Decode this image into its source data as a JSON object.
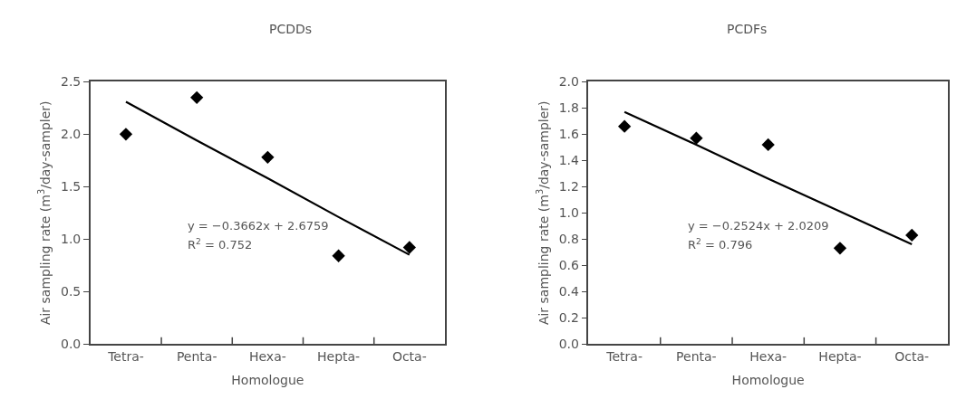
{
  "chart_data": [
    {
      "type": "scatter",
      "title": "PCDDs",
      "xlabel": "Homologue",
      "ylabel": "Air sampling rate (m$^{3}$/day-sampler)",
      "categories": [
        "Tetra-",
        "Penta-",
        "Hexa-",
        "Hepta-",
        "Octa-"
      ],
      "ylim": [
        0,
        2.5
      ],
      "yticks": [
        {
          "value": 0,
          "label": "0.0"
        },
        0.5,
        {
          "value": 1,
          "label": "1.0"
        },
        1.5,
        {
          "value": 2,
          "label": "2.0"
        },
        2.5
      ],
      "marker": "diamond",
      "series": [
        {
          "color": "#000000",
          "values": [
            2.0,
            2.35,
            1.78,
            0.84,
            0.92
          ]
        },
        {
          "type": "line",
          "color": "#000000",
          "line_style": "solid",
          "marker": "none",
          "values": [
            2.31,
            1.94,
            1.58,
            1.21,
            0.85
          ]
        }
      ],
      "annotations": [
        "y = −0.3662x + 2.6759",
        "R$^{2}$ = 0.752"
      ]
    },
    {
      "type": "scatter",
      "title": "PCDFs",
      "xlabel": "Homologue",
      "ylabel": "Air sampling rate (m$^{3}$/day-sampler)",
      "categories": [
        "Tetra-",
        "Penta-",
        "Hexa-",
        "Hepta-",
        "Octa-"
      ],
      "ylim": [
        0,
        2.0
      ],
      "yticks": [
        {
          "value": 0,
          "label": "0.0"
        },
        0.2,
        0.4,
        0.6,
        0.8,
        {
          "value": 1,
          "label": "1.0"
        },
        1.2,
        1.4,
        1.6,
        1.8,
        {
          "value": 2,
          "label": "2.0"
        }
      ],
      "marker": "diamond",
      "series": [
        {
          "color": "#000000",
          "values": [
            1.66,
            1.57,
            1.52,
            0.73,
            0.83
          ]
        },
        {
          "type": "line",
          "color": "#000000",
          "line_style": "solid",
          "marker": "none",
          "values": [
            1.77,
            1.52,
            1.26,
            1.01,
            0.76
          ]
        }
      ],
      "annotations": [
        "y = −0.2524x + 2.0209",
        "R$^{2}$ = 0.796"
      ]
    }
  ]
}
